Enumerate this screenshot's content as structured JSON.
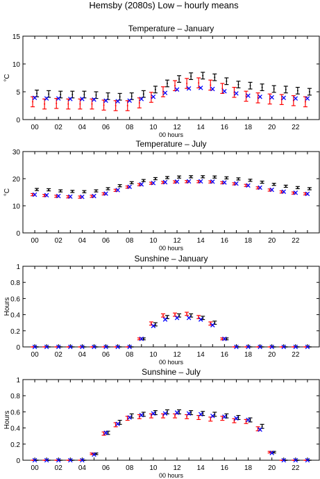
{
  "figure_title": "Hemsby (2080s) Low – hourly means",
  "colors": {
    "black": "#000000",
    "red": "#ff0000",
    "blue": "#0000ff"
  },
  "chart_data": [
    {
      "type": "scatter",
      "title": "Temperature – January",
      "xlabel": "00 hours",
      "ylabel": "°C",
      "ylim": [
        0,
        15
      ],
      "yticks": [
        0,
        5,
        10,
        15
      ],
      "xlim": [
        -1,
        24
      ],
      "xticks": [
        "00",
        "02",
        "04",
        "06",
        "08",
        "10",
        "12",
        "14",
        "16",
        "18",
        "20",
        "22"
      ],
      "grid": false,
      "x": [
        0,
        1,
        2,
        3,
        4,
        5,
        6,
        7,
        8,
        9,
        10,
        11,
        12,
        13,
        14,
        15,
        16,
        17,
        18,
        19,
        20,
        21,
        22,
        23
      ],
      "series": [
        {
          "color": "black",
          "marker": "errorbar",
          "values": [
            4.7,
            4.6,
            4.5,
            4.5,
            4.5,
            4.4,
            4.2,
            4.1,
            4.2,
            4.6,
            5.4,
            6.5,
            7.3,
            7.8,
            7.9,
            7.6,
            6.9,
            6.3,
            6.1,
            5.8,
            5.5,
            5.4,
            5.2,
            5.0
          ],
          "err": [
            0.6,
            0.6,
            0.6,
            0.6,
            0.6,
            0.6,
            0.6,
            0.6,
            0.6,
            0.6,
            0.6,
            0.6,
            0.6,
            0.6,
            0.6,
            0.6,
            0.6,
            0.6,
            0.6,
            0.6,
            0.6,
            0.6,
            0.6,
            0.6
          ]
        },
        {
          "color": "red",
          "marker": "errorbar",
          "values": [
            3.2,
            2.8,
            2.9,
            2.8,
            2.8,
            2.8,
            2.6,
            2.5,
            2.5,
            3.0,
            4.0,
            5.0,
            6.1,
            6.5,
            6.6,
            6.2,
            5.6,
            4.9,
            4.2,
            3.9,
            3.7,
            3.6,
            3.4,
            3.2
          ],
          "err": [
            0.9,
            0.9,
            0.9,
            0.9,
            0.9,
            0.9,
            0.9,
            0.9,
            0.9,
            0.9,
            0.9,
            0.9,
            0.9,
            0.9,
            0.9,
            0.9,
            0.9,
            0.9,
            0.9,
            0.9,
            0.9,
            0.9,
            0.9,
            0.9
          ]
        },
        {
          "color": "blue",
          "marker": "x",
          "values": [
            3.9,
            3.8,
            3.8,
            3.7,
            3.7,
            3.6,
            3.4,
            3.3,
            3.4,
            3.7,
            4.1,
            4.8,
            5.4,
            5.6,
            5.7,
            5.5,
            5.1,
            4.7,
            4.3,
            4.1,
            4.0,
            3.9,
            3.8,
            3.8
          ]
        }
      ]
    },
    {
      "type": "scatter",
      "title": "Temperature – July",
      "xlabel": "00 hours",
      "ylabel": "°C",
      "ylim": [
        0,
        30
      ],
      "yticks": [
        0,
        10,
        20,
        30
      ],
      "xlim": [
        -1,
        24
      ],
      "xticks": [
        "00",
        "02",
        "04",
        "06",
        "08",
        "10",
        "12",
        "14",
        "16",
        "18",
        "20",
        "22"
      ],
      "grid": false,
      "x": [
        0,
        1,
        2,
        3,
        4,
        5,
        6,
        7,
        8,
        9,
        10,
        11,
        12,
        13,
        14,
        15,
        16,
        17,
        18,
        19,
        20,
        21,
        22,
        23
      ],
      "series": [
        {
          "color": "black",
          "marker": "errorbar",
          "values": [
            16.0,
            15.9,
            15.5,
            15.3,
            15.2,
            15.5,
            16.3,
            17.4,
            18.5,
            19.3,
            20.0,
            20.4,
            20.6,
            20.7,
            20.7,
            20.6,
            20.3,
            19.9,
            19.4,
            18.7,
            17.9,
            17.2,
            16.7,
            16.3
          ],
          "err": [
            0.4,
            0.4,
            0.4,
            0.4,
            0.4,
            0.4,
            0.4,
            0.4,
            0.4,
            0.4,
            0.4,
            0.4,
            0.4,
            0.4,
            0.4,
            0.4,
            0.4,
            0.4,
            0.4,
            0.4,
            0.4,
            0.4,
            0.4,
            0.4
          ]
        },
        {
          "color": "red",
          "marker": "errorbar",
          "values": [
            14.1,
            13.8,
            13.5,
            13.3,
            13.2,
            13.5,
            14.4,
            15.7,
            16.9,
            17.8,
            18.3,
            18.6,
            18.8,
            18.9,
            18.9,
            18.8,
            18.5,
            18.1,
            17.5,
            16.6,
            15.8,
            15.1,
            14.7,
            14.4
          ],
          "err": [
            0.4,
            0.4,
            0.4,
            0.4,
            0.4,
            0.4,
            0.4,
            0.4,
            0.4,
            0.4,
            0.4,
            0.4,
            0.4,
            0.4,
            0.4,
            0.4,
            0.4,
            0.4,
            0.4,
            0.4,
            0.4,
            0.4,
            0.4,
            0.4
          ]
        },
        {
          "color": "blue",
          "marker": "x",
          "values": [
            14.1,
            13.9,
            13.6,
            13.4,
            13.3,
            13.6,
            14.5,
            15.8,
            17.0,
            17.9,
            18.4,
            18.7,
            18.9,
            19.0,
            19.0,
            18.9,
            18.6,
            18.2,
            17.5,
            16.7,
            15.9,
            15.2,
            14.8,
            14.4
          ]
        }
      ]
    },
    {
      "type": "scatter",
      "title": "Sunshine – January",
      "xlabel": "00 hours",
      "ylabel": "Hours",
      "ylim": [
        0,
        1
      ],
      "yticks": [
        0,
        0.2,
        0.4,
        0.6,
        0.8,
        1
      ],
      "xlim": [
        -1,
        24
      ],
      "xticks": [
        "00",
        "02",
        "04",
        "06",
        "08",
        "10",
        "12",
        "14",
        "16",
        "18",
        "20",
        "22"
      ],
      "grid": false,
      "x": [
        0,
        1,
        2,
        3,
        4,
        5,
        6,
        7,
        8,
        9,
        10,
        11,
        12,
        13,
        14,
        15,
        16,
        17,
        18,
        19,
        20,
        21,
        22,
        23
      ],
      "series": [
        {
          "color": "black",
          "marker": "errorbar",
          "values": [
            0,
            0,
            0,
            0,
            0,
            0,
            0,
            0,
            0,
            0.1,
            0.28,
            0.37,
            0.39,
            0.39,
            0.36,
            0.3,
            0.1,
            0,
            0,
            0,
            0,
            0,
            0,
            0
          ],
          "err": [
            0,
            0,
            0,
            0,
            0,
            0,
            0,
            0,
            0,
            0.012,
            0.02,
            0.02,
            0.02,
            0.02,
            0.02,
            0.02,
            0.012,
            0,
            0,
            0,
            0,
            0,
            0,
            0
          ]
        },
        {
          "color": "red",
          "marker": "errorbar",
          "values": [
            0,
            0,
            0,
            0,
            0,
            0,
            0,
            0,
            0,
            0.1,
            0.29,
            0.39,
            0.4,
            0.41,
            0.37,
            0.29,
            0.1,
            0,
            0,
            0,
            0,
            0,
            0,
            0
          ],
          "err": [
            0,
            0,
            0,
            0,
            0,
            0,
            0,
            0,
            0,
            0.012,
            0.02,
            0.02,
            0.02,
            0.02,
            0.02,
            0.02,
            0.012,
            0,
            0,
            0,
            0,
            0,
            0,
            0
          ]
        },
        {
          "color": "blue",
          "marker": "x",
          "values": [
            0,
            0,
            0,
            0,
            0,
            0,
            0,
            0,
            0,
            0.1,
            0.26,
            0.34,
            0.36,
            0.36,
            0.34,
            0.27,
            0.1,
            0,
            0,
            0,
            0,
            0,
            0,
            0
          ]
        }
      ]
    },
    {
      "type": "scatter",
      "title": "Sunshine – July",
      "xlabel": "00 hours",
      "ylabel": "Hours",
      "ylim": [
        0,
        1
      ],
      "yticks": [
        0,
        0.2,
        0.4,
        0.6,
        0.8,
        1
      ],
      "xlim": [
        -1,
        24
      ],
      "xticks": [
        "00",
        "02",
        "04",
        "06",
        "08",
        "10",
        "12",
        "14",
        "16",
        "18",
        "20",
        "22"
      ],
      "grid": false,
      "x": [
        0,
        1,
        2,
        3,
        4,
        5,
        6,
        7,
        8,
        9,
        10,
        11,
        12,
        13,
        14,
        15,
        16,
        17,
        18,
        19,
        20,
        21,
        22,
        23
      ],
      "series": [
        {
          "color": "black",
          "marker": "errorbar",
          "values": [
            0,
            0,
            0,
            0,
            0,
            0.08,
            0.34,
            0.47,
            0.55,
            0.57,
            0.59,
            0.6,
            0.6,
            0.59,
            0.58,
            0.57,
            0.55,
            0.53,
            0.5,
            0.42,
            0.1,
            0,
            0,
            0
          ],
          "err": [
            0,
            0,
            0,
            0,
            0,
            0.01,
            0.02,
            0.025,
            0.025,
            0.025,
            0.025,
            0.025,
            0.025,
            0.025,
            0.025,
            0.025,
            0.025,
            0.025,
            0.025,
            0.025,
            0.01,
            0,
            0,
            0
          ]
        },
        {
          "color": "red",
          "marker": "errorbar",
          "values": [
            0,
            0,
            0,
            0,
            0,
            0.08,
            0.33,
            0.44,
            0.52,
            0.54,
            0.55,
            0.55,
            0.55,
            0.54,
            0.53,
            0.51,
            0.52,
            0.49,
            0.48,
            0.39,
            0.1,
            0,
            0,
            0
          ],
          "err": [
            0,
            0,
            0,
            0,
            0,
            0.01,
            0.02,
            0.025,
            0.025,
            0.025,
            0.025,
            0.025,
            0.025,
            0.025,
            0.025,
            0.025,
            0.025,
            0.025,
            0.025,
            0.025,
            0.01,
            0,
            0,
            0
          ]
        },
        {
          "color": "blue",
          "marker": "x",
          "values": [
            0,
            0,
            0,
            0,
            0,
            0.07,
            0.34,
            0.45,
            0.53,
            0.56,
            0.58,
            0.58,
            0.59,
            0.58,
            0.57,
            0.55,
            0.54,
            0.52,
            0.5,
            0.38,
            0.09,
            0,
            0,
            0
          ]
        }
      ]
    }
  ]
}
